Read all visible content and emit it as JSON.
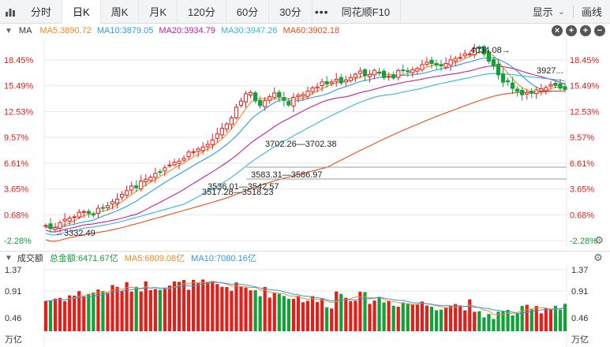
{
  "tabs": [
    {
      "label": "分时",
      "active": false
    },
    {
      "label": "日K",
      "active": true
    },
    {
      "label": "周K",
      "active": false
    },
    {
      "label": "月K",
      "active": false
    },
    {
      "label": "120分",
      "active": false
    },
    {
      "label": "60分",
      "active": false
    },
    {
      "label": "30分",
      "active": false
    }
  ],
  "tabbar": {
    "more": "•••",
    "f10": "同花顺F10",
    "display": "显示",
    "draw": "画线"
  },
  "ma_bar": {
    "name": "MA",
    "items": [
      {
        "label": "MA5:3890.72",
        "color": "#f08a24"
      },
      {
        "label": "MA10:3879.05",
        "color": "#2e9be6"
      },
      {
        "label": "MA20:3934.79",
        "color": "#c0219b"
      },
      {
        "label": "MA30:3947.26",
        "color": "#37b6d6"
      },
      {
        "label": "MA60:3902.18",
        "color": "#e8501c"
      }
    ]
  },
  "price_axis": {
    "labels": [
      "18.45%",
      "15.49%",
      "12.53%",
      "9.57%",
      "6.61%",
      "3.65%",
      "0.68%",
      "-2.28%"
    ],
    "positive_color": "#e0201b",
    "negative_color": "#13a03a"
  },
  "annotations": {
    "high": "4034.08→",
    "low": "←3332.49",
    "right_end": "3927...",
    "gap1": "3702.26—3702.38",
    "gap2": "3583.31—3586.97",
    "gap3": "3536.01—3542.57",
    "gap4": "3517.28—3518.23"
  },
  "volume_bar": {
    "title": "成交额",
    "items": [
      {
        "label": "总金额:6471.67亿",
        "color": "#13a03a"
      },
      {
        "label": "MA5:6809.08亿",
        "color": "#f08a24"
      },
      {
        "label": "MA10:7080.16亿",
        "color": "#2e9be6"
      }
    ]
  },
  "volume_axis": {
    "labels": [
      "1.37",
      "0.91",
      "0.46"
    ],
    "unit": "万亿"
  },
  "colors": {
    "up": "#e0201b",
    "down": "#13a03a",
    "grid": "#e6e8eb"
  }
}
